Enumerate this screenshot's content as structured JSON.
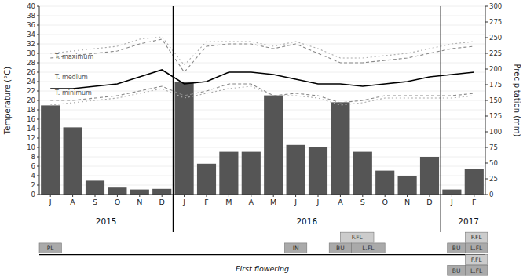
{
  "chart_data": {
    "type": "bar",
    "categories": [
      "J",
      "A",
      "S",
      "O",
      "N",
      "D",
      "J",
      "F",
      "M",
      "A",
      "M",
      "J",
      "J",
      "A",
      "S",
      "O",
      "N",
      "D",
      "J",
      "F"
    ],
    "series": [
      {
        "type": "bar",
        "axis": "y2",
        "color": "#555555",
        "values": [
          142,
          107,
          22,
          11,
          8,
          9,
          180,
          49,
          68,
          68,
          158,
          79,
          75,
          147,
          68,
          38,
          30,
          60,
          8,
          41
        ]
      },
      {
        "type": "line",
        "color": "#000000",
        "line_style": "solid",
        "values": [
          22.5,
          22.5,
          23.0,
          23.5,
          25.0,
          26.5,
          23.5,
          24.0,
          26.0,
          26.0,
          25.5,
          24.5,
          23.5,
          23.5,
          23.0,
          23.5,
          24.0,
          25.0,
          25.5,
          26.0
        ]
      },
      {
        "type": "line",
        "color": "#888888",
        "line_style": "dashed",
        "values": [
          29.0,
          29.5,
          30.0,
          30.5,
          32.0,
          33.0,
          26.0,
          31.5,
          32.0,
          32.0,
          31.0,
          32.0,
          30.0,
          28.0,
          28.0,
          28.5,
          29.0,
          30.0,
          31.0,
          31.5
        ]
      },
      {
        "type": "line",
        "color": "#888888",
        "line_style": "dashed",
        "values": [
          20.0,
          20.0,
          20.5,
          21.0,
          22.0,
          23.0,
          21.0,
          22.0,
          23.5,
          23.5,
          21.0,
          21.5,
          21.0,
          19.5,
          20.0,
          21.0,
          21.0,
          21.0,
          21.0,
          21.5
        ]
      },
      {
        "type": "line",
        "color": "#aaaaaa",
        "line_style": "dotted",
        "values": [
          30.0,
          30.5,
          31.0,
          31.5,
          33.0,
          33.5,
          27.5,
          32.5,
          32.5,
          32.5,
          31.5,
          32.5,
          31.0,
          29.0,
          29.0,
          29.5,
          30.0,
          31.0,
          32.0,
          32.5
        ]
      },
      {
        "type": "line",
        "color": "#aaaaaa",
        "line_style": "dotted",
        "values": [
          19.0,
          19.5,
          20.0,
          20.5,
          21.5,
          22.5,
          20.5,
          21.5,
          22.5,
          23.0,
          21.0,
          21.0,
          20.5,
          19.0,
          19.5,
          20.5,
          20.5,
          20.5,
          20.5,
          21.0
        ]
      }
    ],
    "ylabel": "Temperature (°C)",
    "y2label": "Precipitation (mm)",
    "ylim": [
      0,
      40
    ],
    "yticks": [
      0,
      2,
      4,
      6,
      8,
      10,
      12,
      14,
      16,
      18,
      20,
      22,
      24,
      26,
      28,
      30,
      32,
      34,
      36,
      38,
      40
    ],
    "y2lim": [
      0,
      300
    ],
    "y2ticks": [
      0,
      25,
      50,
      75,
      100,
      125,
      150,
      175,
      200,
      225,
      250,
      275,
      300
    ],
    "annotations": [
      {
        "text": "T. maximum",
        "x": 0.2,
        "y": 28.5
      },
      {
        "text": "T. medium",
        "x": 0.2,
        "y": 24.2
      },
      {
        "text": "T. minimum",
        "x": 0.2,
        "y": 20.8
      }
    ],
    "year_labels": [
      {
        "label": "2015",
        "x": 2.5
      },
      {
        "label": "2016",
        "x": 11.5
      },
      {
        "label": "2017",
        "x": 18.75
      }
    ],
    "dividers": [
      5.5,
      17.5
    ],
    "phenology_label": "First flowering",
    "phenology_upper": [
      {
        "label": "PL",
        "col": 0,
        "row": 0,
        "width": 1.0,
        "color": "#aaaaaa"
      },
      {
        "label": "IN",
        "col": 11.0,
        "row": 0,
        "width": 1.0,
        "color": "#aaaaaa"
      },
      {
        "label": "BU",
        "col": 13.0,
        "row": 0,
        "width": 1.0,
        "color": "#aaaaaa"
      },
      {
        "label": "L.FL",
        "col": 14.0,
        "row": 0,
        "width": 1.5,
        "color": "#aaaaaa"
      },
      {
        "label": "F.FL",
        "col": 13.5,
        "row": 1,
        "width": 1.5,
        "color": "#cccccc"
      },
      {
        "label": "BU",
        "col": 18.3,
        "row": 0,
        "width": 0.8,
        "color": "#aaaaaa"
      },
      {
        "label": "L.FL",
        "col": 19.1,
        "row": 0,
        "width": 1.0,
        "color": "#aaaaaa"
      },
      {
        "label": "F.FL",
        "col": 19.1,
        "row": 1,
        "width": 1.0,
        "color": "#cccccc"
      }
    ],
    "phenology_lower": [
      {
        "label": "BU",
        "col": 18.3,
        "row": 0,
        "width": 0.8,
        "color": "#aaaaaa"
      },
      {
        "label": "L.FL",
        "col": 19.1,
        "row": 0,
        "width": 1.0,
        "color": "#aaaaaa"
      },
      {
        "label": "F.FL",
        "col": 19.1,
        "row": 1,
        "width": 1.0,
        "color": "#cccccc"
      }
    ]
  }
}
